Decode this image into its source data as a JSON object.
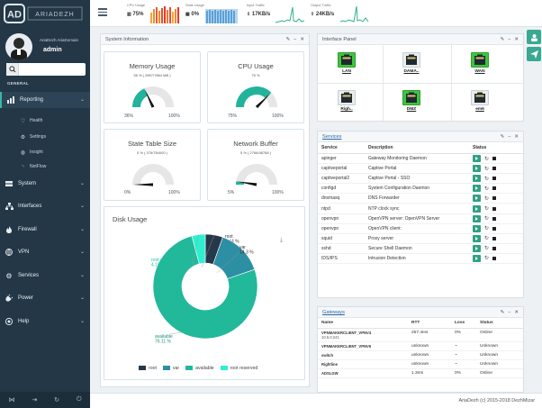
{
  "brand": {
    "logo_letters": "AD",
    "logo_word": "ARIADEZH"
  },
  "profile": {
    "name": "AriaDezh AriaDomain",
    "role": "admin"
  },
  "sidebar": {
    "section_label": "GENERAL",
    "reporting": {
      "label": "Reporting",
      "sub": [
        "Health",
        "Settings",
        "Insight",
        "NetFlow"
      ]
    },
    "items": [
      "System",
      "Interfaces",
      "Firewall",
      "VPN",
      "Services",
      "Power",
      "Help"
    ]
  },
  "topbar": {
    "cpu": {
      "label": "CPU Usage",
      "value": "75%"
    },
    "state": {
      "label": "State Usage",
      "value": "0%"
    },
    "input": {
      "label": "Input Traffic",
      "value": "17KB/s"
    },
    "output": {
      "label": "Output Traffic",
      "value": "24KB/s"
    }
  },
  "system_info": {
    "title": "System Information",
    "memory": {
      "title": "Memory Usage",
      "sub": "36 % ( 2897/7884 MB )",
      "min": "36%",
      "max": "100%",
      "value": 36
    },
    "cpu": {
      "title": "CPU Usage",
      "sub": "75 %",
      "min": "75%",
      "max": "100%",
      "value": 75
    },
    "state": {
      "title": "State Table Size",
      "sub": "0 % ( 376/784000 )",
      "min": "0%",
      "max": "100%",
      "value": 0
    },
    "buffer": {
      "title": "Network Buffer",
      "sub": "5 % ( 2766/48768 )",
      "min": "5%",
      "max": "100%",
      "value": 5
    }
  },
  "disk": {
    "title": "Disk Usage",
    "slices": [
      {
        "name": "root",
        "value": 5.44,
        "color": "#263849",
        "label": "root\n5.44 %"
      },
      {
        "name": "var",
        "value": 14.3,
        "color": "#2d8fa4",
        "label": "var\n14.3 %"
      },
      {
        "name": "available",
        "value": 76.11,
        "color": "#22b89a",
        "label": "available\n76.11 %"
      },
      {
        "name": "root reserved",
        "value": 4.15,
        "color": "#2ef0cf",
        "label": "root reserved\n4.15 %"
      }
    ],
    "legend": [
      "root",
      "var",
      "available",
      "root reserved"
    ]
  },
  "interface_panel": {
    "title": "Interface Panel",
    "ports": [
      {
        "name": "LAN",
        "up": true
      },
      {
        "name": "DAMA..",
        "up": false
      },
      {
        "name": "WAN",
        "up": true
      },
      {
        "name": "Righ..",
        "up": false
      },
      {
        "name": "DMZ",
        "up": true
      },
      {
        "name": "em6",
        "up": false
      }
    ]
  },
  "services": {
    "title": "Services",
    "headers": [
      "Service",
      "Description",
      "Status"
    ],
    "rows": [
      [
        "apinger",
        "Gateway Monitoring Daemon"
      ],
      [
        "captiveportal",
        "Captive Portal"
      ],
      [
        "captiveportal2",
        "Captive Portal - SSO"
      ],
      [
        "configd",
        "System Configuration Daemon"
      ],
      [
        "dnsmasq",
        "DNS Forwarder"
      ],
      [
        "ntpd",
        "NTP clock sync"
      ],
      [
        "openvpn",
        "OpenVPN server: OpenVPN Server"
      ],
      [
        "openvpn",
        "OpenVPN client:"
      ],
      [
        "squid",
        "Proxy server"
      ],
      [
        "sshd",
        "Secure Shell Daemon"
      ],
      [
        "IDS/IPS",
        "Intrusion Detection"
      ]
    ]
  },
  "gateways": {
    "title": "Gateways",
    "headers": [
      "Name",
      "RTT",
      "Loss",
      "Status"
    ],
    "rows": [
      {
        "name": "VPNMAKERCLIENT_VPNV4",
        "ip": "10.5.0.241",
        "rtt": "257.4ms",
        "loss": "0%",
        "status": "Online",
        "ok": true
      },
      {
        "name": "VPNMAKERCLIENT_VPNV6",
        "ip": "",
        "rtt": "unknown",
        "loss": "~",
        "status": "Unknown",
        "ok": false
      },
      {
        "name": "switch",
        "ip": "",
        "rtt": "unknown",
        "loss": "~",
        "status": "Unknown",
        "ok": false
      },
      {
        "name": "Rightline",
        "ip": "",
        "rtt": "unknown",
        "loss": "~",
        "status": "Unknown",
        "ok": false
      },
      {
        "name": "ADSLGW",
        "ip": "",
        "rtt": "1.3ms",
        "loss": "0%",
        "status": "Online",
        "ok": true
      }
    ]
  },
  "footer": {
    "text": "AriaDezh (c) 2015-2018 DezhMizar"
  }
}
